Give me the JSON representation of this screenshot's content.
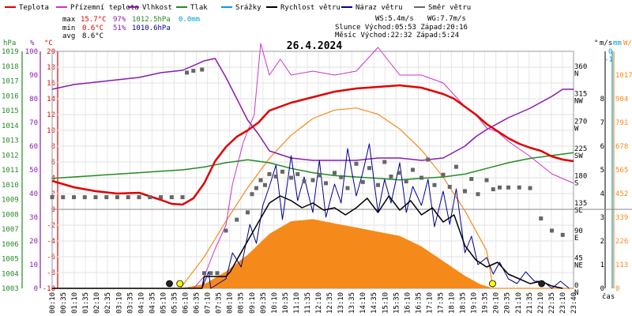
{
  "chart_data": {
    "type": "line",
    "title": "26.4.2024",
    "legend": [
      {
        "name": "Teplota",
        "color": "#e00000"
      },
      {
        "name": "Přízemní teplota",
        "color": "#cc33cc"
      },
      {
        "name": "Vlhkost",
        "color": "#8a1ab0"
      },
      {
        "name": "Tlak",
        "color": "#228b22"
      },
      {
        "name": "Srážky",
        "color": "#00a0e0"
      },
      {
        "name": "Rychlost větru",
        "color": "#000000"
      },
      {
        "name": "Náraz větru",
        "color": "#000090"
      },
      {
        "name": "Směr větru",
        "color": "#666666"
      }
    ],
    "stats": {
      "max_label": "max",
      "min_label": "min",
      "avg_label": "avg",
      "max_temp": "15.7°C",
      "max_hum": "97%",
      "max_press": "1012.5hPa",
      "max_rain": "0.0mm",
      "min_temp": "0.6°C",
      "min_hum": "51%",
      "min_press": "1010.6hPa",
      "avg_temp": "8.6°C"
    },
    "wind_info": {
      "ws": "WS:5.4m/s",
      "wg": "WG:7.7m/s",
      "sun": "Slunce Východ:05:53  Západ:20:16",
      "moon": "Měsíc  Východ:22:32  Západ:5:24"
    },
    "axes": {
      "hpa_unit": "hPa",
      "pct_unit": "%",
      "temp_unit": "°C",
      "deg_unit": "°",
      "ms_unit": "m/s",
      "mm_unit": "mm",
      "wm2_unit": "W/m²",
      "x_unit": "čas",
      "hpa": [
        "1019",
        "1018",
        "1017",
        "1016",
        "1015",
        "1014",
        "1013",
        "1012",
        "1011",
        "1010",
        "1009",
        "1008",
        "1007",
        "1006",
        "1005",
        "1004",
        "1003"
      ],
      "pct": [
        "100",
        "90",
        "80",
        "70",
        "60",
        "50",
        "40",
        "30",
        "20",
        "10",
        "0"
      ],
      "temp": [
        "20",
        "18",
        "16",
        "14",
        "12",
        "10",
        "8",
        "6",
        "4",
        "2",
        "0",
        "-2",
        "-4",
        "-6",
        "-8",
        "-10"
      ],
      "deg": [
        {
          "label": "360",
          "dir": "N",
          "v": 360
        },
        {
          "label": "315",
          "dir": "NW",
          "v": 315
        },
        {
          "label": "270",
          "dir": "W",
          "v": 270
        },
        {
          "label": "225",
          "dir": "SW",
          "v": 225
        },
        {
          "label": "180",
          "dir": "S",
          "v": 180
        },
        {
          "label": "135",
          "dir": "SE",
          "v": 135
        },
        {
          "label": "90",
          "dir": "E",
          "v": 90
        },
        {
          "label": "45",
          "dir": "NE",
          "v": 45
        },
        {
          "label": "0",
          "dir": "N",
          "v": 0
        }
      ],
      "ms": [
        "8",
        "7",
        "6",
        "5",
        "4",
        "3",
        "2",
        "1",
        "0"
      ],
      "mm_top": "0",
      "mm_second": "-1",
      "wm2": [
        "1017",
        "904",
        "791",
        "678",
        "565",
        "452",
        "339",
        "226",
        "113",
        "0"
      ],
      "time": [
        "00:10",
        "00:35",
        "01:10",
        "01:35",
        "02:10",
        "02:35",
        "03:10",
        "03:35",
        "04:10",
        "04:35",
        "05:10",
        "05:35",
        "06:10",
        "06:35",
        "07:10",
        "07:35",
        "08:10",
        "08:35",
        "09:10",
        "09:35",
        "10:10",
        "10:35",
        "11:10",
        "11:35",
        "12:10",
        "12:35",
        "13:10",
        "13:35",
        "14:10",
        "14:35",
        "15:10",
        "15:35",
        "16:10",
        "16:35",
        "17:10",
        "17:35",
        "18:10",
        "18:35",
        "19:10",
        "19:35",
        "20:10",
        "20:35",
        "21:10",
        "21:35",
        "22:10",
        "22:35",
        "23:10",
        "23:40"
      ]
    },
    "series": [
      {
        "name": "Teplota",
        "unit": "°C",
        "x": [
          0,
          1,
          2,
          3,
          4,
          5,
          5.5,
          6,
          6.5,
          7,
          7.5,
          8,
          8.5,
          9,
          9.5,
          10,
          11,
          12,
          13,
          14,
          15,
          16,
          17,
          18,
          18.5,
          19,
          19.5,
          20,
          20.5,
          21,
          21.5,
          22,
          22.5,
          23,
          23.5,
          24
        ],
        "y": [
          3.6,
          2.8,
          2.3,
          2.0,
          2.1,
          1.2,
          0.7,
          0.6,
          1.4,
          3.3,
          6.1,
          7.9,
          9.2,
          10.0,
          11.0,
          12.5,
          13.5,
          14.2,
          14.9,
          15.3,
          15.5,
          15.7,
          15.4,
          14.6,
          14.0,
          13.0,
          12.0,
          10.8,
          9.9,
          9.0,
          8.3,
          7.8,
          7.4,
          6.7,
          6.3,
          6.1
        ]
      },
      {
        "name": "Přízemní teplota",
        "unit": "°C",
        "x": [
          0,
          1,
          2,
          3,
          4,
          5,
          5.5,
          6,
          6.5,
          7,
          7.5,
          8,
          8.3,
          8.8,
          9.3,
          9.6,
          10,
          10.5,
          11,
          12,
          13,
          14,
          15,
          16,
          17,
          18,
          18.5,
          19,
          19.5,
          20,
          20.5,
          21,
          22,
          23,
          24
        ],
        "y": [
          -10,
          -10,
          -10,
          -10,
          -10,
          -10,
          -10,
          -10,
          -10,
          -8.5,
          -5,
          -2,
          3.2,
          8.5,
          12,
          21,
          17,
          19,
          17,
          17.5,
          17,
          17.5,
          20.5,
          17,
          17,
          16,
          14.5,
          13,
          12,
          10.3,
          9.8,
          8.6,
          6.7,
          4.5,
          3.3
        ]
      },
      {
        "name": "Vlhkost",
        "unit": "%",
        "x": [
          0,
          1,
          2,
          3,
          4,
          5,
          6,
          7,
          7.5,
          8,
          8.5,
          9,
          9.5,
          10,
          11,
          12,
          13,
          14,
          15,
          16,
          17,
          18,
          19,
          19.5,
          20,
          21,
          22,
          23,
          23.5,
          24
        ],
        "y": [
          84,
          86,
          87,
          88,
          89,
          91,
          92,
          96,
          97,
          89,
          80,
          71,
          65,
          58,
          55,
          54,
          54,
          54,
          55,
          55,
          54,
          55,
          60,
          64,
          67,
          72,
          76,
          81,
          84,
          84
        ]
      },
      {
        "name": "Tlak",
        "unit": "hPa",
        "x": [
          0,
          1,
          2,
          3,
          4,
          5,
          6,
          7,
          8,
          9,
          10,
          11,
          12,
          13,
          14,
          15,
          16,
          17,
          18,
          19,
          20,
          21,
          22,
          23,
          24
        ],
        "y": [
          1010.7,
          1010.8,
          1010.9,
          1011.0,
          1011.1,
          1011.2,
          1011.3,
          1011.5,
          1011.8,
          1012.0,
          1011.8,
          1011.4,
          1011.1,
          1010.9,
          1010.8,
          1010.7,
          1010.6,
          1010.7,
          1010.8,
          1011.0,
          1011.4,
          1011.8,
          1012.1,
          1012.3,
          1012.5
        ]
      },
      {
        "name": "Rychlost větru",
        "unit": "m/s",
        "x": [
          0,
          5.5,
          6.9,
          7.0,
          8.0,
          8.2,
          8.5,
          9,
          9.5,
          10,
          10.5,
          11,
          11.5,
          12,
          12.5,
          13,
          13.5,
          14,
          14.5,
          15,
          15.5,
          16,
          16.5,
          17,
          17.5,
          18,
          18.5,
          19,
          19.5,
          20,
          20.5,
          21,
          21.5,
          22,
          22.5,
          23,
          23.5
        ],
        "y": [
          0,
          0,
          0,
          0.5,
          0.5,
          0.7,
          1.2,
          2.0,
          2.8,
          3.6,
          3.9,
          3.7,
          3.4,
          3.6,
          3.3,
          3.4,
          3.1,
          3.4,
          3.8,
          3.2,
          3.9,
          3.3,
          3.7,
          3.1,
          3.4,
          2.8,
          3.1,
          1.8,
          1.2,
          0.9,
          1.1,
          0.6,
          0.4,
          0.2,
          0.3,
          0.1,
          0
        ]
      },
      {
        "name": "Náraz větru",
        "unit": "m/s",
        "x": [
          0,
          6.9,
          7.2,
          7.3,
          8.0,
          8.3,
          8.7,
          9.1,
          9.4,
          9.7,
          10.0,
          10.3,
          10.6,
          11.0,
          11.3,
          11.6,
          12.0,
          12.3,
          12.6,
          13.0,
          13.3,
          13.6,
          14.0,
          14.3,
          14.6,
          15.0,
          15.3,
          15.6,
          16.0,
          16.3,
          16.6,
          17.0,
          17.3,
          17.6,
          18.0,
          18.3,
          18.6,
          19.0,
          19.3,
          19.6,
          20.0,
          20.3,
          20.6,
          21.0,
          21.4,
          21.8,
          22.2,
          22.6,
          23.0,
          23.4,
          23.8
        ],
        "y": [
          0,
          0,
          0.7,
          0,
          0.4,
          1.5,
          0.9,
          2.7,
          1.9,
          3.5,
          4.3,
          5.2,
          2.9,
          5.6,
          3.7,
          4.7,
          3.2,
          5.4,
          3.0,
          4.4,
          3.6,
          5.9,
          3.9,
          4.9,
          6.1,
          3.2,
          4.6,
          3.6,
          5.3,
          3.2,
          4.3,
          3.5,
          4.6,
          2.6,
          4.1,
          2.7,
          4.2,
          1.5,
          2.2,
          1.0,
          1.3,
          0.6,
          1.1,
          0.4,
          0.2,
          0.7,
          0.3,
          0.3,
          0,
          0.3,
          0
        ]
      },
      {
        "name": "Solární záření",
        "unit": "W/m²",
        "x": [
          0,
          5.8,
          6.2,
          7,
          8,
          9,
          10,
          11,
          12,
          13,
          14,
          15,
          16,
          17,
          18,
          19,
          19.7,
          20.3,
          24
        ],
        "y": [
          0,
          0,
          5,
          20,
          80,
          160,
          260,
          320,
          330,
          310,
          290,
          270,
          250,
          200,
          130,
          60,
          20,
          0,
          0
        ]
      },
      {
        "name": "Teoretické záření",
        "unit": "W/m²",
        "x": [
          0,
          5.9,
          7,
          8,
          9,
          10,
          11,
          12,
          13,
          14,
          15,
          16,
          17,
          18,
          19,
          20,
          20.3,
          24
        ],
        "y": [
          0,
          0,
          150,
          320,
          480,
          620,
          730,
          810,
          850,
          860,
          830,
          760,
          660,
          530,
          370,
          180,
          0,
          0
        ]
      },
      {
        "name": "Směr větru",
        "unit": "°",
        "x": [
          0,
          0.5,
          1,
          1.5,
          2,
          2.5,
          3,
          3.5,
          4,
          4.5,
          5,
          5.5,
          6,
          6.2,
          6.5,
          6.9,
          7,
          7.3,
          7.6,
          8,
          8.5,
          9,
          9.2,
          9.4,
          9.6,
          9.8,
          10,
          10.3,
          10.6,
          11,
          11.3,
          11.6,
          12,
          12.3,
          12.6,
          13,
          13.3,
          13.6,
          14,
          14.3,
          14.6,
          15,
          15.3,
          15.6,
          16,
          16.3,
          16.6,
          17,
          17.3,
          17.6,
          18,
          18.3,
          18.6,
          19,
          19.3,
          19.6,
          20,
          20.3,
          20.6,
          21,
          21.5,
          22,
          22.5,
          23,
          23.5
        ],
        "y": [
          150,
          150,
          150,
          150,
          150,
          150,
          150,
          150,
          150,
          150,
          150,
          150,
          150,
          355,
          358,
          360,
          25,
          25,
          25,
          95,
          113,
          125,
          155,
          165,
          178,
          170,
          188,
          184,
          192,
          182,
          188,
          176,
          178,
          186,
          173,
          190,
          183,
          165,
          205,
          175,
          198,
          170,
          208,
          184,
          190,
          176,
          195,
          182,
          212,
          170,
          187,
          167,
          200,
          160,
          180,
          155,
          178,
          163,
          166,
          166,
          166,
          165,
          115,
          95,
          88
        ]
      }
    ],
    "markers": [
      {
        "name": "Východ slunce",
        "x": 5.88
      },
      {
        "name": "Západ slunce",
        "x": 20.27
      },
      {
        "name": "Východ měsíce",
        "x": 22.53
      },
      {
        "name": "Západ měsíce",
        "x": 5.4
      }
    ]
  }
}
